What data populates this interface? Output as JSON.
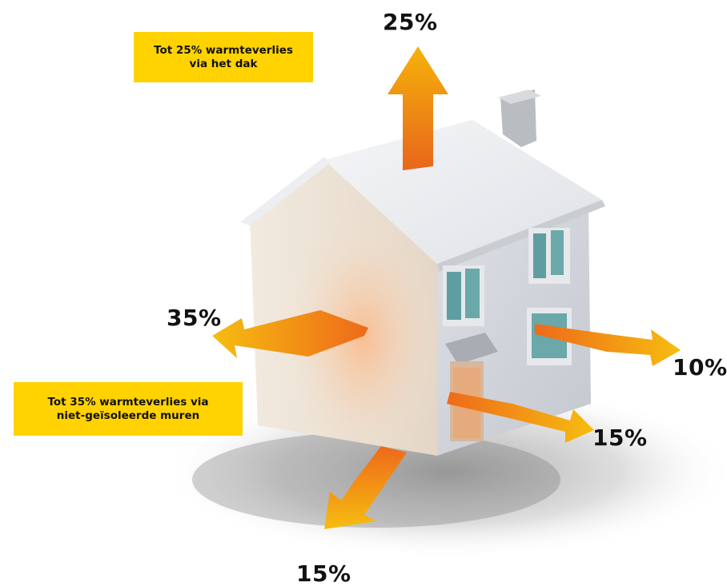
{
  "callouts": {
    "roof": {
      "line1": "Tot 25% warmteverlies",
      "line2": "via het dak"
    },
    "walls": {
      "line1": "Tot 35% warmteverlies via",
      "line2": "niet-geïsoleerde muren"
    }
  },
  "percentages": {
    "roof": "25%",
    "walls": "35%",
    "windows": "10%",
    "door": "15%",
    "floor": "15%"
  },
  "colors": {
    "callout_bg": "#ffd200",
    "arrow_orange": "#f07a1a",
    "arrow_yellow": "#f6b800"
  }
}
